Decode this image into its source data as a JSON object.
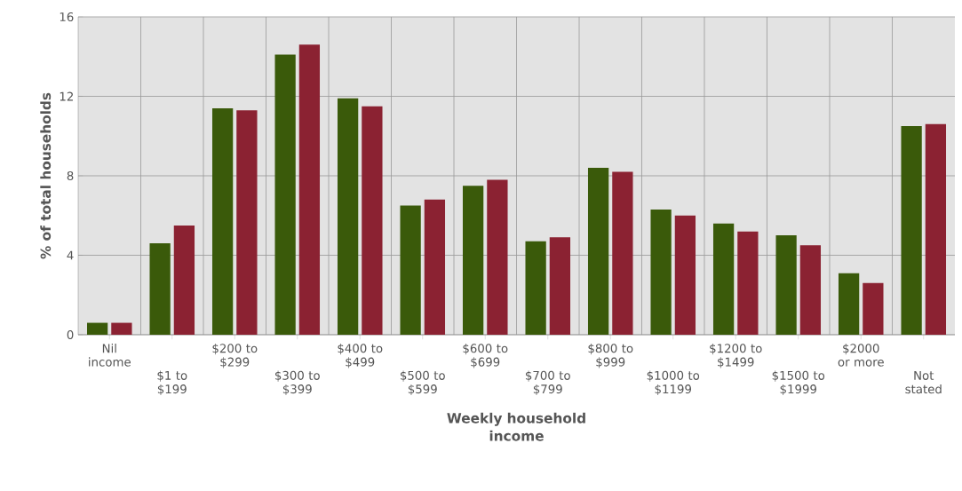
{
  "chart_data": {
    "type": "bar",
    "xlabel": "Weekly household income",
    "ylabel": "% of total households",
    "categories": [
      "Nil income",
      "$1 to $199",
      "$200 to $299",
      "$300 to $399",
      "$400 to $499",
      "$500 to $599",
      "$600 to $699",
      "$700 to $799",
      "$800 to $999",
      "$1000 to $1199",
      "$1200 to $1499",
      "$1500 to $1999",
      "$2000 or more",
      "Not stated"
    ],
    "series": [
      {
        "color": "#3a5a0a",
        "values": [
          0.6,
          4.6,
          11.4,
          14.1,
          11.9,
          6.5,
          7.5,
          4.7,
          8.4,
          6.3,
          5.6,
          5.0,
          3.1,
          10.5
        ]
      },
      {
        "color": "#8b2232",
        "values": [
          0.6,
          5.5,
          11.3,
          14.6,
          11.5,
          6.8,
          7.8,
          4.9,
          8.2,
          6.0,
          5.2,
          4.5,
          2.6,
          10.6
        ]
      }
    ],
    "ylim": [
      0,
      16
    ],
    "yticks": [
      0,
      4,
      8,
      12,
      16
    ],
    "grid": true
  }
}
